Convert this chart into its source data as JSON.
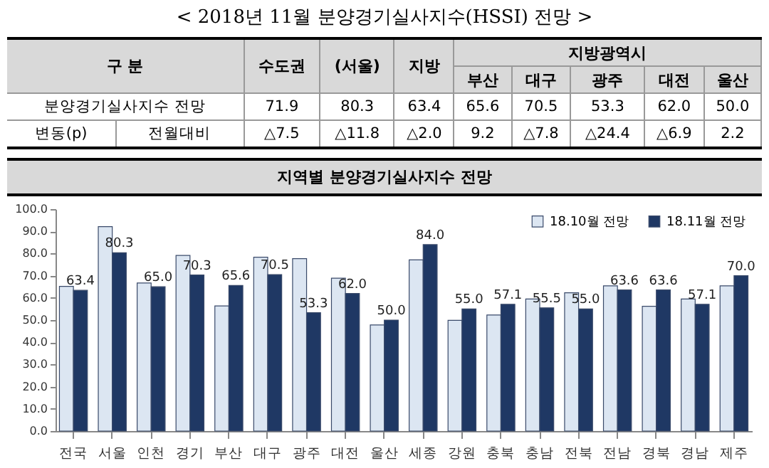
{
  "chart_data": [
    {
      "type": "other",
      "title": "< 2018년 11월 분양경기실사지수(HSSI) 전망 >",
      "annotations": [
        "구  분",
        "수도권",
        "(서울)",
        "지방",
        "지방광역시",
        "부산",
        "대구",
        "광주",
        "대전",
        "울산",
        "분양경기실사지수 전망",
        "71.9",
        "80.3",
        "63.4",
        "65.6",
        "70.5",
        "53.3",
        "62.0",
        "50.0",
        "변동(p)",
        "전월대비",
        "△7.5",
        "△11.8",
        "△2.0",
        "9.2",
        "△7.8",
        "△24.4",
        "△6.9",
        "2.2"
      ]
    },
    {
      "type": "bar",
      "title": "지역별 분양경기실사지수 전망",
      "categories": [
        "전국",
        "서울",
        "인천",
        "경기",
        "부산",
        "대구",
        "광주",
        "대전",
        "울산",
        "세종",
        "강원",
        "충북",
        "충남",
        "전북",
        "전남",
        "경북",
        "경남",
        "제주"
      ],
      "series": [
        {
          "name": "18.10월 전망",
          "color": "#dce6f2",
          "values": [
            65.2,
            92.1,
            66.7,
            79.1,
            56.4,
            78.3,
            77.7,
            68.9,
            47.8,
            77.1,
            49.9,
            52.3,
            59.5,
            62.3,
            65.4,
            56.2,
            59.5,
            65.4
          ]
        },
        {
          "name": "18.11월 전망",
          "color": "#1f3864",
          "values": [
            63.4,
            80.3,
            65.0,
            70.3,
            65.6,
            70.5,
            53.3,
            62.0,
            50.0,
            84.0,
            55.0,
            57.1,
            55.5,
            55.0,
            63.6,
            63.6,
            57.1,
            70.0
          ],
          "value_labels": [
            "63.4",
            "80.3",
            "65.0",
            "70.3",
            "65.6",
            "70.5",
            "53.3",
            "62.0",
            "50.0",
            "84.0",
            "55.0",
            "57.1",
            "55.5",
            "55.0",
            "63.6",
            "63.6",
            "57.1",
            "70.0"
          ]
        }
      ],
      "ylim": [
        0,
        100
      ],
      "yticks": [
        {
          "value": 0,
          "label": "0.0"
        },
        {
          "value": 10,
          "label": "10.0"
        },
        {
          "value": 20,
          "label": "20.0"
        },
        {
          "value": 30,
          "label": "30.0"
        },
        {
          "value": 40,
          "label": "40.0"
        },
        {
          "value": 50,
          "label": "50.0"
        },
        {
          "value": 60,
          "label": "60.0"
        },
        {
          "value": 70,
          "label": "70.0"
        },
        {
          "value": 80,
          "label": "80.0"
        },
        {
          "value": 90,
          "label": "90.0"
        },
        {
          "value": 100,
          "label": "100.0"
        }
      ],
      "grid": false,
      "legend": "top right"
    }
  ]
}
